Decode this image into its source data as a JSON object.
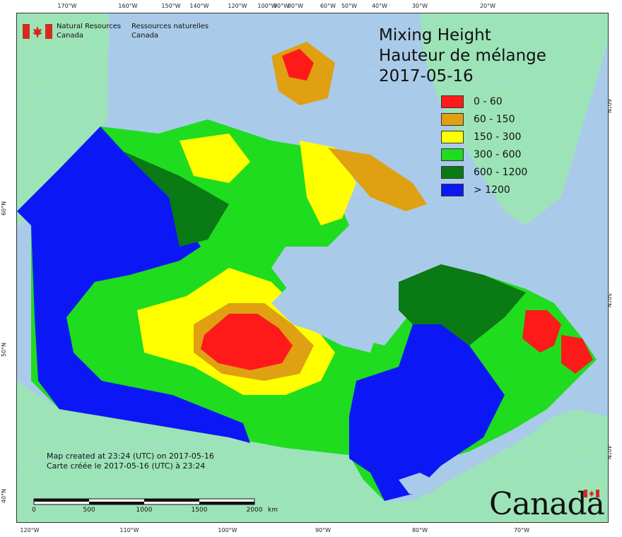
{
  "map": {
    "title_en": "Mixing Height",
    "title_fr": "Hauteur de mélange",
    "date": "2017-05-16",
    "colors": {
      "ocean": "#a9cbe9",
      "land": "#9de3b8",
      "no_data_lake": "#b8d3ee"
    },
    "legend": [
      {
        "label": "0 - 60",
        "color": "#ff1a1a"
      },
      {
        "label": "60 - 150",
        "color": "#dfa012"
      },
      {
        "label": "150 - 300",
        "color": "#ffff00"
      },
      {
        "label": "300 - 600",
        "color": "#1fdc1f"
      },
      {
        "label": "600 - 1200",
        "color": "#0a7a14"
      },
      {
        "label": "> 1200",
        "color": "#0b18f5"
      }
    ],
    "top_ticks": [
      "170°W",
      "160°W",
      "150°W",
      "140°W",
      "120°W",
      "100°W",
      "90°W",
      "80°W",
      "60°W",
      "50°W",
      "40°W",
      "30°W",
      "20°W"
    ],
    "bottom_ticks": [
      "120°W",
      "110°W",
      "100°W",
      "90°W",
      "80°W",
      "70°W"
    ],
    "left_ticks": [
      "60°N",
      "50°N",
      "40°N"
    ],
    "right_ticks": [
      "60°N",
      "50°N",
      "40°N"
    ]
  },
  "agency": {
    "name_en_1": "Natural Resources",
    "name_en_2": "Canada",
    "name_fr_1": "Ressources naturelles",
    "name_fr_2": "Canada"
  },
  "credits": {
    "line_en": "Map created at 23:24 (UTC) on 2017-05-16",
    "line_fr": "Carte créée le 2017-05-16 (UTC) à 23:24"
  },
  "scale": {
    "labels": [
      "0",
      "500",
      "1000",
      "1500",
      "2000"
    ],
    "unit": "km"
  },
  "wordmark": "Canada"
}
